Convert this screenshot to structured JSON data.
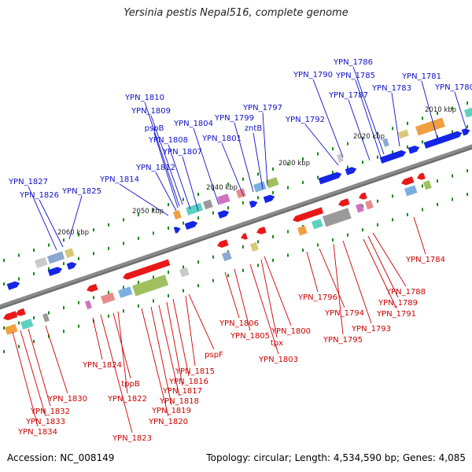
{
  "title": "Yersinia pestis Nepal516, complete genome",
  "footer": {
    "accession": "Accession: NC_008149",
    "summary": "Topology: circular; Length: 4,534,590 bp; Genes: 4,085"
  },
  "colors": {
    "forward_label": "#1010c8",
    "reverse_label": "#cc0000",
    "backbone": "#8c8c8c",
    "tick": "#1a8a1a",
    "forward_arrow": "#1525e6",
    "reverse_arrow": "#e81818"
  },
  "scale_labels": [
    "2010 kbp",
    "2020 kbp",
    "2030 kbp",
    "2040 kbp",
    "2050 kbp",
    "2060 kbp"
  ],
  "forward_genes": [
    "YPN_1780",
    "YPN_1781",
    "YPN_1783",
    "YPN_1786",
    "YPN_1785",
    "YPN_1787",
    "YPN_1790",
    "YPN_1792",
    "YPN_1797",
    "zntB",
    "YPN_1799",
    "YPN_1801",
    "YPN_1804",
    "YPN_1810",
    "YPN_1809",
    "pspB",
    "YPN_1808",
    "YPN_1807",
    "YPN_1812",
    "YPN_1814",
    "YPN_1827",
    "YPN_1826",
    "YPN_1825"
  ],
  "reverse_genes": [
    "YPN_1784",
    "YPN_1788",
    "YPN_1789",
    "YPN_1791",
    "YPN_1793",
    "YPN_1795",
    "YPN_1794",
    "YPN_1796",
    "YPN_1800",
    "tpx",
    "YPN_1803",
    "YPN_1805",
    "YPN_1806",
    "pspF",
    "YPN_1815",
    "YPN_1816",
    "YPN_1817",
    "YPN_1818",
    "YPN_1819",
    "YPN_1820",
    "YPN_1822",
    "tppB",
    "YPN_1823",
    "YPN_1824",
    "YPN_1830",
    "YPN_1832",
    "YPN_1833",
    "YPN_1834"
  ]
}
